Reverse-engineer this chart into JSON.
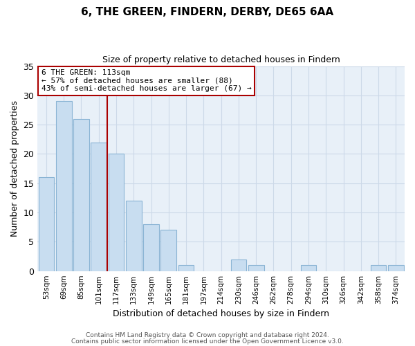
{
  "title": "6, THE GREEN, FINDERN, DERBY, DE65 6AA",
  "subtitle": "Size of property relative to detached houses in Findern",
  "xlabel": "Distribution of detached houses by size in Findern",
  "ylabel": "Number of detached properties",
  "bar_labels": [
    "53sqm",
    "69sqm",
    "85sqm",
    "101sqm",
    "117sqm",
    "133sqm",
    "149sqm",
    "165sqm",
    "181sqm",
    "197sqm",
    "214sqm",
    "230sqm",
    "246sqm",
    "262sqm",
    "278sqm",
    "294sqm",
    "310sqm",
    "326sqm",
    "342sqm",
    "358sqm",
    "374sqm"
  ],
  "bar_values": [
    16,
    29,
    26,
    22,
    20,
    12,
    8,
    7,
    1,
    0,
    0,
    2,
    1,
    0,
    0,
    1,
    0,
    0,
    0,
    1,
    1
  ],
  "bar_color": "#c8ddf0",
  "bar_edge_color": "#8ab4d4",
  "grid_color": "#ccd9e8",
  "background_color": "#ffffff",
  "plot_bg_color": "#e8f0f8",
  "annotation_box_text": "6 THE GREEN: 113sqm\n← 57% of detached houses are smaller (88)\n43% of semi-detached houses are larger (67) →",
  "annotation_box_edge_color": "#aa0000",
  "vline_color": "#aa0000",
  "vline_x": 3.5,
  "ylim": [
    0,
    35
  ],
  "yticks": [
    0,
    5,
    10,
    15,
    20,
    25,
    30,
    35
  ],
  "footnote1": "Contains HM Land Registry data © Crown copyright and database right 2024.",
  "footnote2": "Contains public sector information licensed under the Open Government Licence v3.0."
}
